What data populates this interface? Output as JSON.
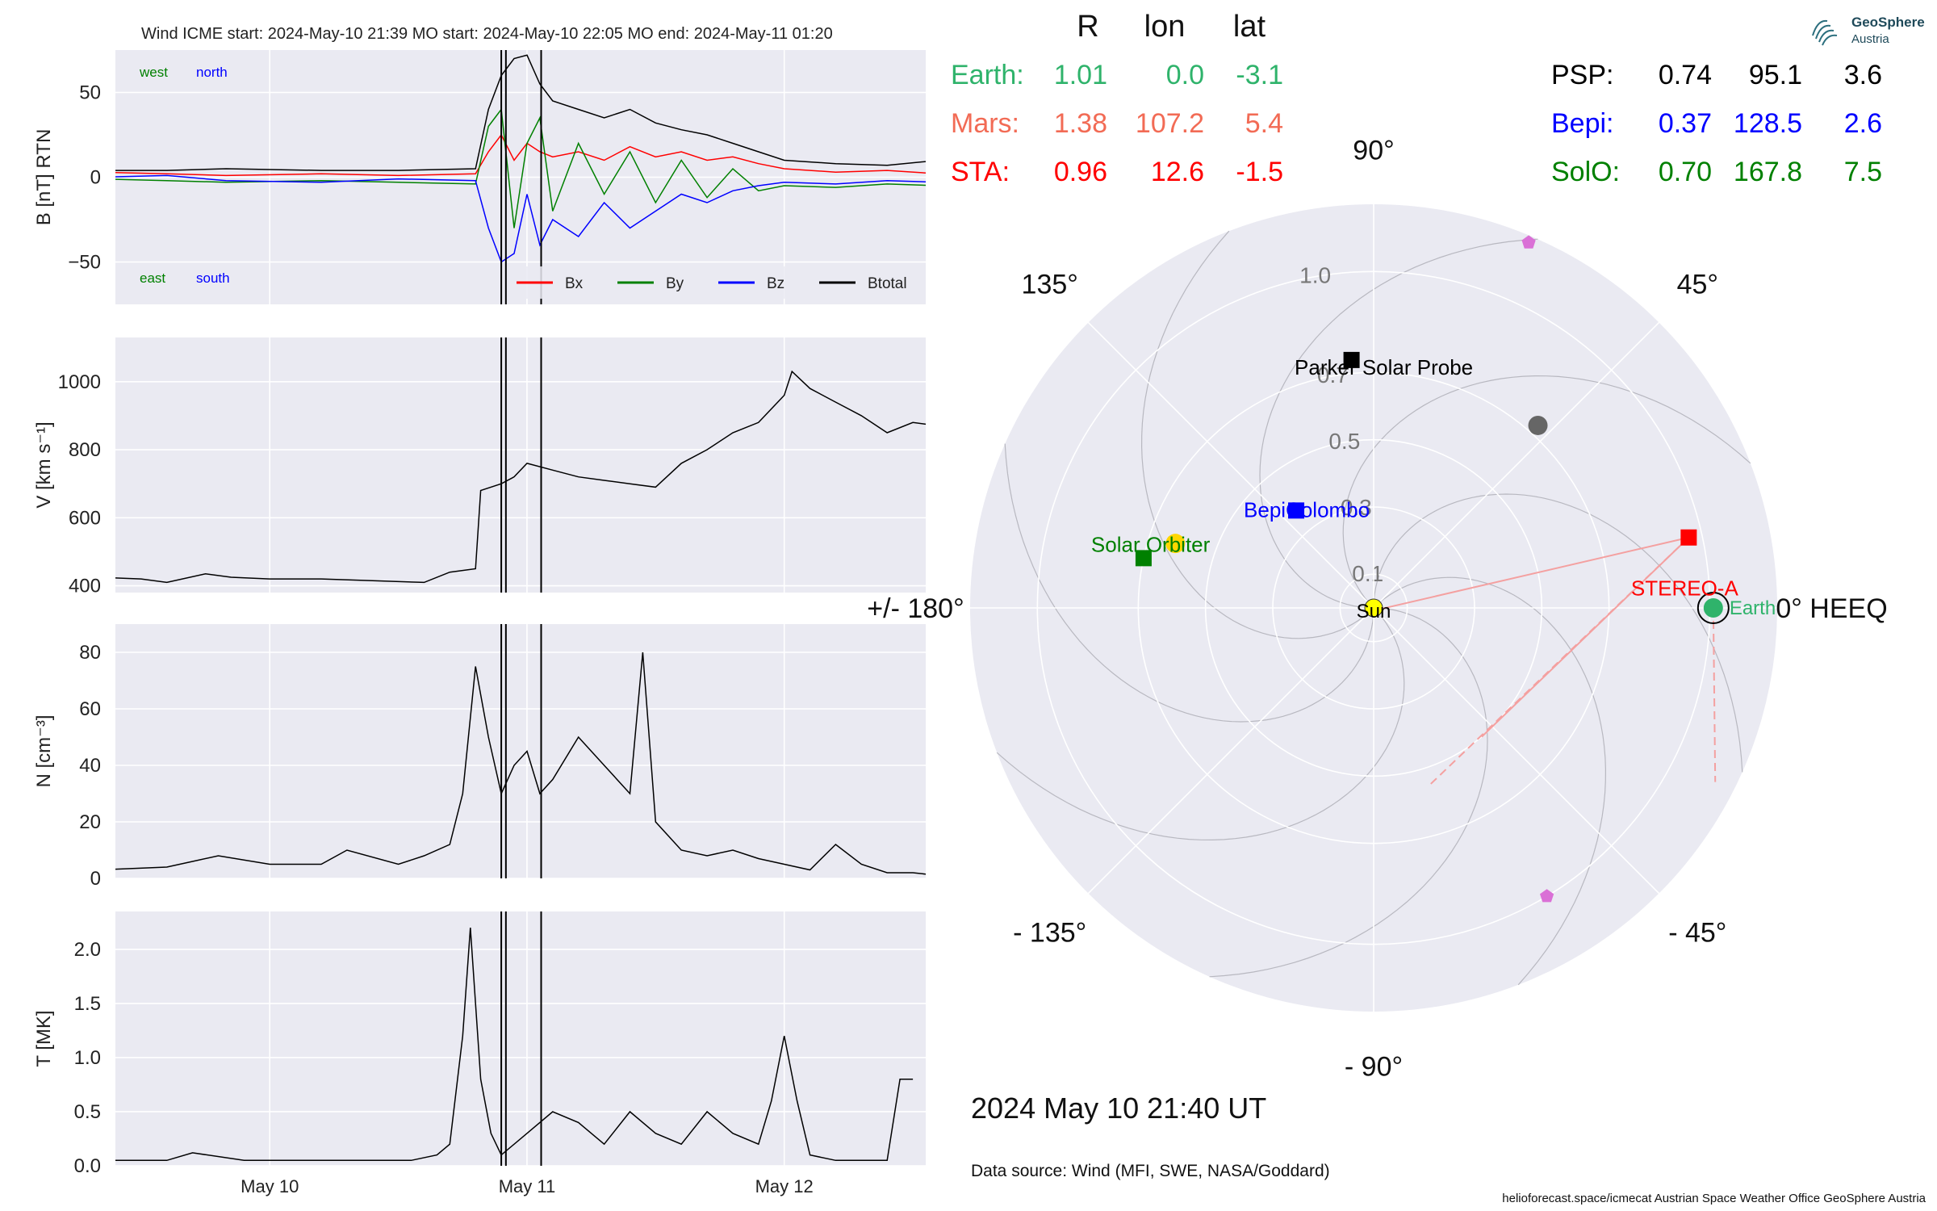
{
  "header": {
    "wind_title": "Wind    ICME start: 2024-May-10 21:39    MO start: 2024-May-10 22:05    MO end: 2024-May-11 01:20"
  },
  "logo": {
    "title": "GeoSphere",
    "subtitle": "Austria"
  },
  "positions": {
    "col_headers": [
      "R",
      "lon",
      "lat"
    ],
    "left_rows": [
      {
        "name": "Earth:",
        "R": "1.01",
        "lon": "0.0",
        "lat": "-3.1",
        "color": "#2fb36b"
      },
      {
        "name": "Mars:",
        "R": "1.38",
        "lon": "107.2",
        "lat": "5.4",
        "color": "#f26b55"
      },
      {
        "name": "STA:",
        "R": "0.96",
        "lon": "12.6",
        "lat": "-1.5",
        "color": "#ff0000"
      }
    ],
    "right_rows": [
      {
        "name": "PSP:",
        "R": "0.74",
        "lon": "95.1",
        "lat": "3.6",
        "color": "#000000"
      },
      {
        "name": "Bepi:",
        "R": "0.37",
        "lon": "128.5",
        "lat": "2.6",
        "color": "#0000ff"
      },
      {
        "name": "SolO:",
        "R": "0.70",
        "lon": "167.8",
        "lat": "7.5",
        "color": "#008000"
      }
    ]
  },
  "timestamp": "2024 May 10  21:40 UT",
  "data_source": "Data source: Wind (MFI, SWE, NASA/Goddard)",
  "footer": "helioforecast.space/icmecat   Austrian Space Weather Office   GeoSphere Austria",
  "chart_data": [
    {
      "type": "line",
      "panel": "magnetic_field",
      "ylabel": "B [nT] RTN",
      "ylim": [
        -75,
        75
      ],
      "yticks": [
        -50,
        0,
        50
      ],
      "corner_labels": {
        "top_left_1": "west",
        "top_left_2": "north",
        "bottom_left_1": "east",
        "bottom_left_2": "south"
      },
      "legend_position": "lower-right",
      "series": [
        {
          "name": "Bx",
          "color": "#ff0000",
          "x": [
            9.33,
            9.6,
            9.83,
            10.2,
            10.5,
            10.8,
            10.85,
            10.9,
            10.95,
            11.0,
            11.05,
            11.1,
            11.2,
            11.3,
            11.4,
            11.5,
            11.6,
            11.7,
            11.8,
            11.9,
            12.0,
            12.2,
            12.4,
            12.6,
            12.7
          ],
          "y": [
            3,
            2,
            1,
            2,
            1,
            2,
            15,
            25,
            10,
            20,
            15,
            12,
            15,
            10,
            18,
            12,
            15,
            10,
            12,
            8,
            5,
            3,
            4,
            2,
            5
          ]
        },
        {
          "name": "By",
          "color": "#008000",
          "x": [
            9.33,
            9.6,
            9.83,
            10.2,
            10.5,
            10.8,
            10.85,
            10.9,
            10.95,
            11.0,
            11.05,
            11.1,
            11.2,
            11.3,
            11.4,
            11.5,
            11.6,
            11.7,
            11.8,
            11.9,
            12.0,
            12.2,
            12.4,
            12.6,
            12.7
          ],
          "y": [
            -1,
            -2,
            -3,
            -2,
            -3,
            -4,
            30,
            40,
            -30,
            20,
            35,
            -20,
            20,
            -10,
            15,
            -15,
            10,
            -12,
            5,
            -8,
            -5,
            -6,
            -4,
            -5,
            -3
          ]
        },
        {
          "name": "Bz",
          "color": "#0000ff",
          "x": [
            9.33,
            9.6,
            9.83,
            10.2,
            10.5,
            10.8,
            10.85,
            10.9,
            10.95,
            11.0,
            11.05,
            11.1,
            11.2,
            11.3,
            11.4,
            11.5,
            11.6,
            11.7,
            11.8,
            11.9,
            12.0,
            12.2,
            12.4,
            12.6,
            12.7
          ],
          "y": [
            0,
            1,
            -2,
            -3,
            -1,
            -2,
            -30,
            -50,
            -45,
            -10,
            -40,
            -25,
            -35,
            -15,
            -30,
            -20,
            -10,
            -15,
            -8,
            -5,
            -3,
            -4,
            -2,
            -3,
            0
          ]
        },
        {
          "name": "Btotal",
          "color": "#000000",
          "x": [
            9.33,
            9.6,
            9.83,
            10.2,
            10.5,
            10.8,
            10.85,
            10.9,
            10.95,
            11.0,
            11.05,
            11.1,
            11.2,
            11.3,
            11.4,
            11.5,
            11.6,
            11.7,
            11.8,
            11.9,
            12.0,
            12.2,
            12.4,
            12.6,
            12.7
          ],
          "y": [
            4,
            4,
            5,
            4,
            4,
            5,
            40,
            60,
            70,
            72,
            55,
            45,
            40,
            35,
            40,
            32,
            28,
            25,
            20,
            15,
            10,
            8,
            7,
            10,
            8
          ]
        }
      ]
    },
    {
      "type": "line",
      "panel": "velocity",
      "ylabel": "V [km s$^{-1}$]",
      "ylim": [
        380,
        1130
      ],
      "yticks": [
        400,
        600,
        800,
        1000
      ],
      "series": [
        {
          "name": "",
          "color": "#000000",
          "x": [
            9.33,
            9.5,
            9.6,
            9.75,
            9.85,
            10.0,
            10.2,
            10.4,
            10.6,
            10.7,
            10.8,
            10.82,
            10.9,
            10.95,
            11.0,
            11.1,
            11.2,
            11.3,
            11.4,
            11.5,
            11.6,
            11.7,
            11.8,
            11.9,
            12.0,
            12.03,
            12.1,
            12.2,
            12.3,
            12.4,
            12.5,
            12.6,
            12.7
          ],
          "y": [
            425,
            420,
            410,
            435,
            425,
            420,
            420,
            415,
            410,
            440,
            450,
            680,
            700,
            720,
            760,
            740,
            720,
            710,
            700,
            690,
            760,
            800,
            850,
            880,
            960,
            1030,
            980,
            940,
            900,
            850,
            880,
            870,
            860
          ]
        }
      ]
    },
    {
      "type": "line",
      "panel": "density",
      "ylabel": "N [cm$^{-3}$]",
      "ylim": [
        0,
        90
      ],
      "yticks": [
        0,
        20,
        40,
        60,
        80
      ],
      "series": [
        {
          "name": "",
          "color": "#000000",
          "x": [
            9.33,
            9.6,
            9.7,
            9.8,
            10.0,
            10.2,
            10.3,
            10.5,
            10.6,
            10.7,
            10.75,
            10.8,
            10.85,
            10.9,
            10.95,
            11.0,
            11.05,
            11.1,
            11.2,
            11.3,
            11.4,
            11.45,
            11.5,
            11.6,
            11.7,
            11.8,
            11.9,
            12.0,
            12.1,
            12.2,
            12.3,
            12.4,
            12.5,
            12.6,
            12.7
          ],
          "y": [
            3,
            4,
            6,
            8,
            5,
            5,
            10,
            5,
            8,
            12,
            30,
            75,
            50,
            30,
            40,
            45,
            30,
            35,
            50,
            40,
            30,
            80,
            20,
            10,
            8,
            10,
            7,
            5,
            3,
            12,
            5,
            2,
            2,
            1,
            1
          ]
        }
      ]
    },
    {
      "type": "line",
      "panel": "temperature",
      "ylabel": "T [MK]",
      "ylim": [
        0,
        2.35
      ],
      "yticks": [
        0.0,
        0.5,
        1.0,
        1.5,
        2.0
      ],
      "xticks": [
        "May 10",
        "May 11",
        "May 12"
      ],
      "xtick_days": [
        10,
        11,
        12
      ],
      "xlim_days": [
        9.4,
        12.55
      ],
      "vlines_days": [
        10.9,
        10.918,
        11.055
      ],
      "series": [
        {
          "name": "",
          "color": "#000000",
          "x": [
            9.33,
            9.6,
            9.7,
            9.9,
            10.1,
            10.3,
            10.55,
            10.65,
            10.7,
            10.75,
            10.78,
            10.82,
            10.86,
            10.9,
            11.0,
            11.1,
            11.2,
            11.3,
            11.4,
            11.5,
            11.6,
            11.7,
            11.8,
            11.9,
            11.95,
            12.0,
            12.05,
            12.1,
            12.2,
            12.3,
            12.4,
            12.45,
            12.5
          ],
          "y": [
            0.05,
            0.05,
            0.12,
            0.05,
            0.05,
            0.05,
            0.05,
            0.1,
            0.2,
            1.2,
            2.2,
            0.8,
            0.3,
            0.1,
            0.3,
            0.5,
            0.4,
            0.2,
            0.5,
            0.3,
            0.2,
            0.5,
            0.3,
            0.2,
            0.6,
            1.2,
            0.6,
            0.1,
            0.05,
            0.05,
            0.05,
            0.8,
            0.8
          ]
        }
      ]
    },
    {
      "type": "scatter",
      "panel": "heliospheric_polar",
      "angle_labels": [
        "90°",
        "45°",
        "0° HEEQ",
        "- 45°",
        "- 90°",
        "- 135°",
        "+/- 180°",
        "135°"
      ],
      "angle_label_degrees": [
        90,
        45,
        0,
        -45,
        -90,
        -135,
        180,
        135
      ],
      "radial_ticks": [
        "0.1",
        "0.3",
        "0.5",
        "0.7",
        "1.0"
      ],
      "radial_values": [
        0.1,
        0.3,
        0.5,
        0.7,
        1.0
      ],
      "rmax": 1.2,
      "bodies": [
        {
          "name": "Sun",
          "r": 0.0,
          "lon": 0,
          "color": "#ffff00",
          "marker": "circle"
        },
        {
          "name": "Earth",
          "r": 1.01,
          "lon": 0.0,
          "color": "#2fb36b",
          "marker": "circle"
        },
        {
          "name": "Mars",
          "r": 1.38,
          "lon": 107.2,
          "color": "#f26b55",
          "marker": "none"
        },
        {
          "name": "STEREO-A",
          "r": 0.96,
          "lon": 12.6,
          "color": "#ff0000",
          "marker": "square"
        },
        {
          "name": "Parker Solar Probe",
          "r": 0.74,
          "lon": 95.1,
          "color": "#000000",
          "marker": "square"
        },
        {
          "name": "BepiColombo",
          "r": 0.37,
          "lon": 128.5,
          "color": "#0000ff",
          "marker": "square"
        },
        {
          "name": "Solar Orbiter",
          "r": 0.7,
          "lon": 167.8,
          "color": "#008000",
          "marker": "square"
        },
        {
          "name": "",
          "r": 0.73,
          "lon": 48,
          "color": "#666666",
          "marker": "circle"
        },
        {
          "name": "",
          "r": 0.62,
          "lon": 162,
          "color": "#ffd700",
          "marker": "circle"
        },
        {
          "name": "",
          "r": 1.18,
          "lon": 67,
          "color": "#da70d6",
          "marker": "pentagon"
        },
        {
          "name": "",
          "r": 1.0,
          "lon": -59,
          "color": "#da70d6",
          "marker": "pentagon"
        }
      ]
    }
  ]
}
